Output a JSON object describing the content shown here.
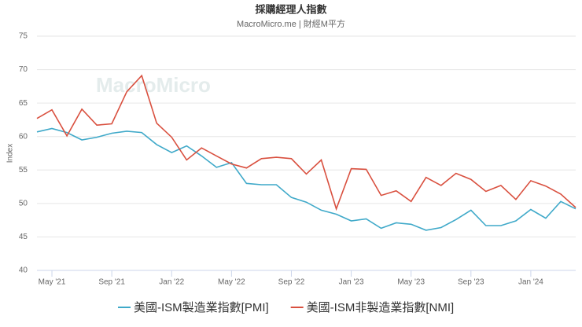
{
  "chart_data": {
    "type": "line",
    "title": "採購經理人指數",
    "subtitle": "MacroMicro.me | 財經M平方",
    "watermark": "MacroMicro",
    "y_label": "Index",
    "categories": [
      null,
      "May '21",
      null,
      null,
      null,
      "Sep '21",
      null,
      null,
      null,
      "Jan '22",
      null,
      null,
      null,
      "May '22",
      null,
      null,
      null,
      "Sep '22",
      null,
      null,
      null,
      "Jan '23",
      null,
      null,
      null,
      "May '23",
      null,
      null,
      null,
      "Sep '23",
      null,
      null,
      null,
      "Jan '24",
      null,
      null,
      null
    ],
    "series": [
      {
        "name": "美國-ISM製造業指數[PMI]",
        "color": "#3fa9c9",
        "values": [
          60.7,
          61.2,
          60.6,
          59.5,
          59.9,
          60.5,
          60.8,
          60.6,
          58.8,
          57.6,
          58.6,
          57.1,
          55.4,
          56.1,
          53.0,
          52.8,
          52.8,
          50.9,
          50.2,
          49.0,
          48.4,
          47.4,
          47.7,
          46.3,
          47.1,
          46.9,
          46.0,
          46.4,
          47.6,
          49.0,
          46.7,
          46.7,
          47.4,
          49.1,
          47.8,
          50.3,
          49.2
        ]
      },
      {
        "name": "美國-ISM非製造業指數[NMI]",
        "color": "#d9503f",
        "values": [
          62.7,
          64.0,
          60.1,
          64.1,
          61.7,
          61.9,
          66.7,
          69.1,
          62.0,
          59.9,
          56.5,
          58.3,
          57.1,
          55.9,
          55.3,
          56.7,
          56.9,
          56.7,
          54.4,
          56.5,
          49.2,
          55.2,
          55.1,
          51.2,
          51.9,
          50.3,
          53.9,
          52.7,
          54.5,
          53.6,
          51.8,
          52.7,
          50.6,
          53.4,
          52.6,
          51.4,
          49.4
        ]
      }
    ],
    "ylim": [
      40,
      75
    ],
    "yticks": [
      40,
      45,
      50,
      55,
      60,
      65,
      70,
      75
    ],
    "grid": true
  }
}
